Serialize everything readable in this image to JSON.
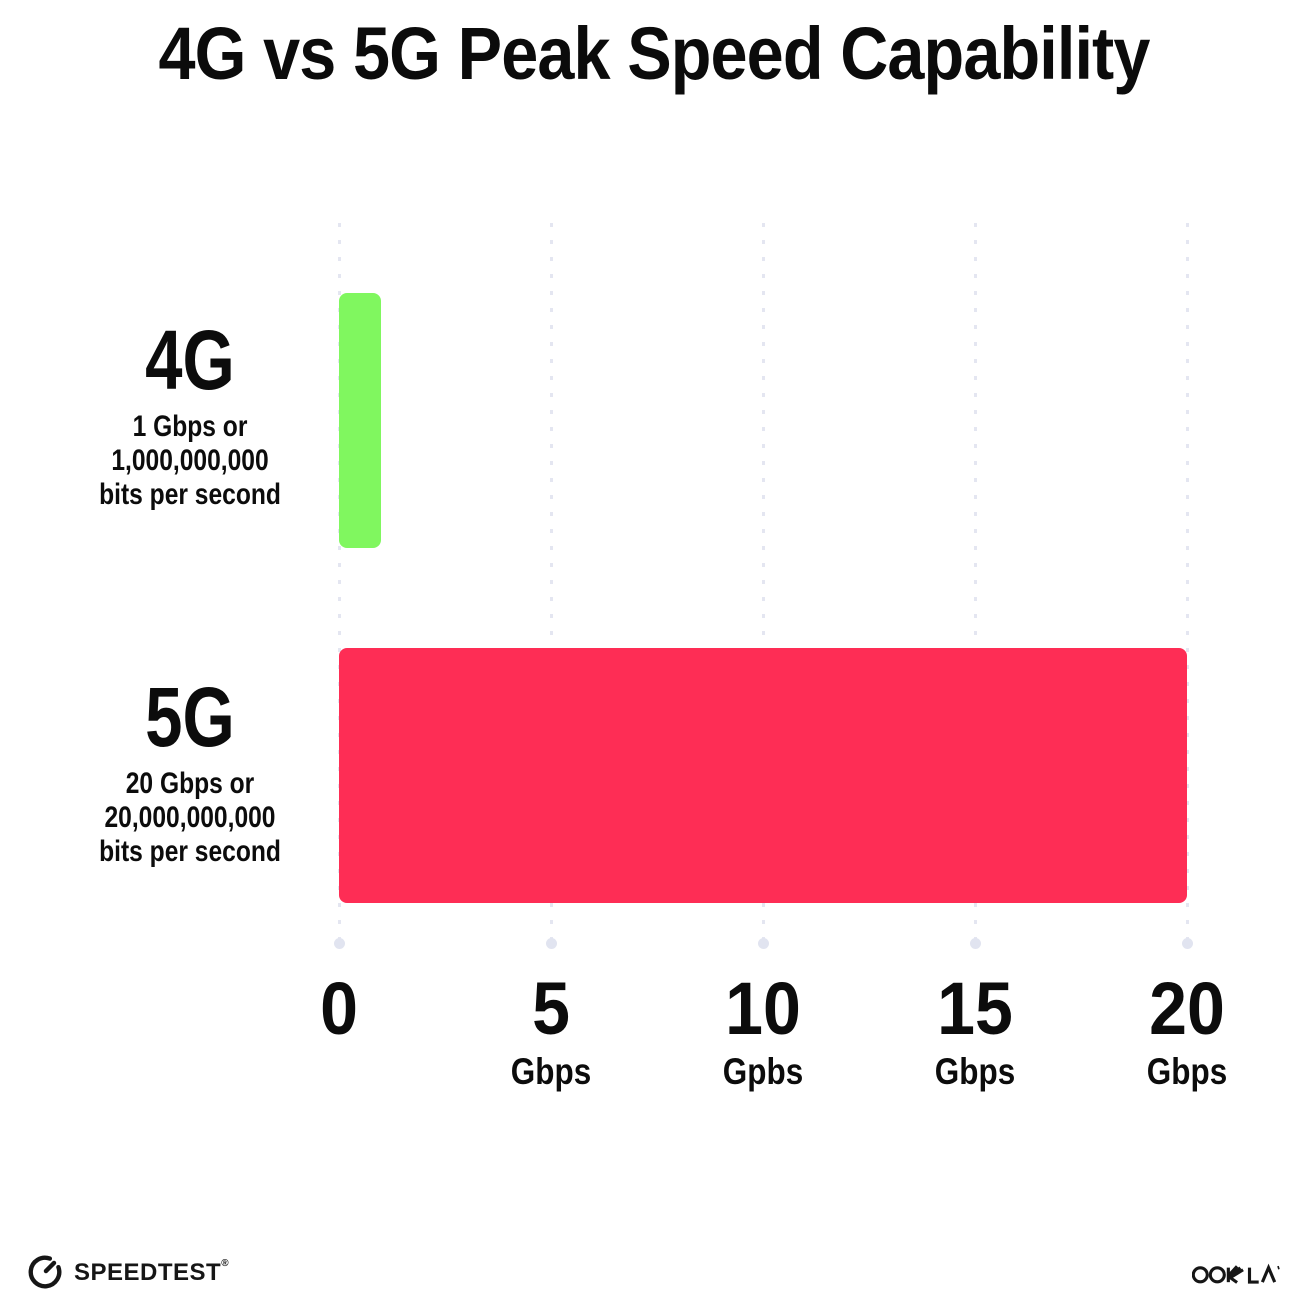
{
  "title": "4G vs 5G Peak Speed Capability",
  "chart_data": {
    "type": "bar",
    "orientation": "horizontal",
    "title": "4G vs 5G Peak Speed Capability",
    "categories": [
      "4G",
      "5G"
    ],
    "values": [
      1,
      20
    ],
    "unit": "Gbps",
    "xlim": [
      0,
      20
    ],
    "x_tick_values": [
      0,
      5,
      10,
      15,
      20
    ],
    "grid": "vertical-dotted",
    "legend": "none",
    "bar_colors": [
      "#80F75F",
      "#FE2D55"
    ],
    "annotations": [
      "1 Gbps or 1,000,000,000 bits per second",
      "20 Gbps or 20,000,000,000 bits per second"
    ]
  },
  "rows": [
    {
      "label": "4G",
      "sub1": "1 Gbps or",
      "sub2": "1,000,000,000",
      "sub3": "bits per second",
      "value": 1,
      "color": "#80F75F"
    },
    {
      "label": "5G",
      "sub1": "20 Gbps or",
      "sub2": "20,000,000,000",
      "sub3": "bits per second",
      "value": 20,
      "color": "#FE2D55"
    }
  ],
  "x_axis": {
    "ticks": [
      {
        "number": "0",
        "unit": ""
      },
      {
        "number": "5",
        "unit": "Gbps"
      },
      {
        "number": "10",
        "unit": "Gpbs"
      },
      {
        "number": "15",
        "unit": "Gbps"
      },
      {
        "number": "20",
        "unit": "Gbps"
      }
    ]
  },
  "footer": {
    "speedtest_label": "SPEEDTEST",
    "speedtest_mark": "®",
    "ookla_label": "OOKLA"
  },
  "colors": {
    "bar_4g": "#80F75F",
    "bar_5g": "#FE2D55",
    "gridline": "#E4E6F1",
    "gridline_end_dot": "#E1E4F0",
    "text": "#0C0C0C",
    "background": "#FFFFFF"
  }
}
